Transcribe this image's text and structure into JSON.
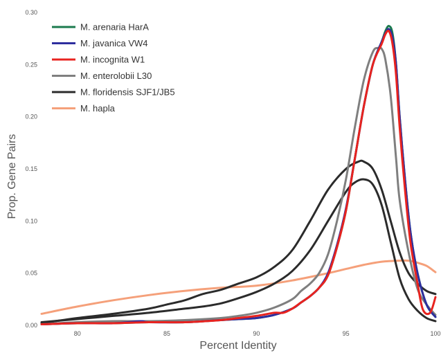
{
  "chart_data": {
    "type": "line",
    "title": "",
    "xlabel": "Percent Identity",
    "ylabel": "Prop. Gene Pairs",
    "xlim": [
      78,
      100
    ],
    "ylim": [
      0,
      0.3
    ],
    "x_ticks": [
      80,
      85,
      90,
      95,
      100
    ],
    "y_ticks": [
      0.0,
      0.05,
      0.1,
      0.15,
      0.2,
      0.25,
      0.3
    ],
    "x_tick_labels": [
      "80",
      "85",
      "90",
      "95",
      "100"
    ],
    "y_tick_labels": [
      "0.00",
      "0.05",
      "0.10",
      "0.15",
      "0.20",
      "0.25",
      "0.30"
    ],
    "grid": false,
    "legend_position": "top-left",
    "series": [
      {
        "name": "M. arenaria HarA",
        "color": "#1b7a4e",
        "points": [
          [
            78,
            0.001
          ],
          [
            80,
            0.002
          ],
          [
            82,
            0.002
          ],
          [
            84,
            0.003
          ],
          [
            86,
            0.003
          ],
          [
            88,
            0.005
          ],
          [
            89,
            0.006
          ],
          [
            90,
            0.007
          ],
          [
            91,
            0.01
          ],
          [
            92,
            0.016
          ],
          [
            92.5,
            0.022
          ],
          [
            93,
            0.028
          ],
          [
            93.5,
            0.036
          ],
          [
            94,
            0.048
          ],
          [
            94.5,
            0.075
          ],
          [
            95,
            0.11
          ],
          [
            95.5,
            0.16
          ],
          [
            96,
            0.21
          ],
          [
            96.5,
            0.25
          ],
          [
            97,
            0.272
          ],
          [
            97.2,
            0.282
          ],
          [
            97.4,
            0.287
          ],
          [
            97.6,
            0.28
          ],
          [
            97.8,
            0.25
          ],
          [
            98,
            0.2
          ],
          [
            98.3,
            0.14
          ],
          [
            98.6,
            0.09
          ],
          [
            99,
            0.05
          ],
          [
            99.5,
            0.02
          ],
          [
            100,
            0.008
          ]
        ]
      },
      {
        "name": "M. javanica VW4",
        "color": "#2e2e9e",
        "points": [
          [
            78,
            0.001
          ],
          [
            80,
            0.002
          ],
          [
            82,
            0.002
          ],
          [
            83.5,
            0.004
          ],
          [
            84,
            0.003
          ],
          [
            86,
            0.003
          ],
          [
            88,
            0.005
          ],
          [
            89,
            0.006
          ],
          [
            90,
            0.007
          ],
          [
            91,
            0.01
          ],
          [
            92,
            0.016
          ],
          [
            92.5,
            0.022
          ],
          [
            93,
            0.028
          ],
          [
            93.5,
            0.036
          ],
          [
            94,
            0.05
          ],
          [
            94.5,
            0.077
          ],
          [
            95,
            0.112
          ],
          [
            95.5,
            0.16
          ],
          [
            96,
            0.21
          ],
          [
            96.5,
            0.25
          ],
          [
            97,
            0.272
          ],
          [
            97.2,
            0.28
          ],
          [
            97.4,
            0.284
          ],
          [
            97.6,
            0.276
          ],
          [
            97.8,
            0.25
          ],
          [
            98,
            0.2
          ],
          [
            98.3,
            0.14
          ],
          [
            98.6,
            0.09
          ],
          [
            99,
            0.05
          ],
          [
            99.5,
            0.02
          ],
          [
            100,
            0.008
          ]
        ]
      },
      {
        "name": "M. incognita W1",
        "color": "#e8231f",
        "points": [
          [
            78,
            0.001
          ],
          [
            80,
            0.002
          ],
          [
            82,
            0.002
          ],
          [
            84,
            0.003
          ],
          [
            86,
            0.003
          ],
          [
            88,
            0.005
          ],
          [
            89,
            0.007
          ],
          [
            90,
            0.009
          ],
          [
            91,
            0.012
          ],
          [
            91.5,
            0.012
          ],
          [
            92,
            0.016
          ],
          [
            92.5,
            0.022
          ],
          [
            93,
            0.028
          ],
          [
            93.5,
            0.036
          ],
          [
            94,
            0.048
          ],
          [
            94.5,
            0.075
          ],
          [
            95,
            0.11
          ],
          [
            95.5,
            0.16
          ],
          [
            96,
            0.21
          ],
          [
            96.5,
            0.25
          ],
          [
            97,
            0.27
          ],
          [
            97.2,
            0.279
          ],
          [
            97.4,
            0.282
          ],
          [
            97.6,
            0.27
          ],
          [
            97.8,
            0.24
          ],
          [
            98,
            0.19
          ],
          [
            98.3,
            0.13
          ],
          [
            98.6,
            0.08
          ],
          [
            99,
            0.04
          ],
          [
            99.3,
            0.015
          ],
          [
            99.7,
            0.012
          ],
          [
            100,
            0.027
          ]
        ]
      },
      {
        "name": "M. enterolobii L30",
        "color": "#7f7f7f",
        "points": [
          [
            78,
            0.001
          ],
          [
            80,
            0.003
          ],
          [
            82,
            0.004
          ],
          [
            84,
            0.004
          ],
          [
            86,
            0.005
          ],
          [
            88,
            0.007
          ],
          [
            89,
            0.009
          ],
          [
            90,
            0.012
          ],
          [
            91,
            0.017
          ],
          [
            92,
            0.025
          ],
          [
            92.5,
            0.033
          ],
          [
            93,
            0.04
          ],
          [
            93.5,
            0.05
          ],
          [
            94,
            0.068
          ],
          [
            94.5,
            0.1
          ],
          [
            95,
            0.14
          ],
          [
            95.5,
            0.19
          ],
          [
            96,
            0.235
          ],
          [
            96.5,
            0.262
          ],
          [
            96.8,
            0.266
          ],
          [
            97,
            0.265
          ],
          [
            97.2,
            0.255
          ],
          [
            97.5,
            0.22
          ],
          [
            97.8,
            0.16
          ],
          [
            98,
            0.12
          ],
          [
            98.5,
            0.07
          ],
          [
            99,
            0.035
          ],
          [
            99.5,
            0.02
          ],
          [
            100,
            0.01
          ]
        ]
      },
      {
        "name": "M. floridensis SJF1/JB5",
        "color": "#2b2b2b",
        "points": [
          [
            78,
            0.003
          ],
          [
            80,
            0.006
          ],
          [
            82,
            0.009
          ],
          [
            84,
            0.012
          ],
          [
            86,
            0.016
          ],
          [
            87,
            0.018
          ],
          [
            88,
            0.021
          ],
          [
            89,
            0.026
          ],
          [
            90,
            0.032
          ],
          [
            91,
            0.04
          ],
          [
            92,
            0.052
          ],
          [
            93,
            0.072
          ],
          [
            94,
            0.1
          ],
          [
            95,
            0.128
          ],
          [
            95.5,
            0.137
          ],
          [
            96,
            0.14
          ],
          [
            96.5,
            0.135
          ],
          [
            97,
            0.115
          ],
          [
            97.5,
            0.08
          ],
          [
            98,
            0.045
          ],
          [
            98.5,
            0.025
          ],
          [
            99,
            0.014
          ],
          [
            99.5,
            0.007
          ],
          [
            100,
            0.004
          ]
        ]
      },
      {
        "name": "M. floridensis SJF1/JB5",
        "color": "#2b2b2b",
        "points": [
          [
            78,
            0.002
          ],
          [
            80,
            0.007
          ],
          [
            82,
            0.011
          ],
          [
            84,
            0.016
          ],
          [
            85,
            0.02
          ],
          [
            86,
            0.024
          ],
          [
            87,
            0.03
          ],
          [
            88,
            0.034
          ],
          [
            89,
            0.04
          ],
          [
            90,
            0.046
          ],
          [
            91,
            0.056
          ],
          [
            92,
            0.072
          ],
          [
            93,
            0.1
          ],
          [
            94,
            0.13
          ],
          [
            95,
            0.15
          ],
          [
            95.7,
            0.157
          ],
          [
            96,
            0.157
          ],
          [
            96.5,
            0.15
          ],
          [
            97,
            0.13
          ],
          [
            97.5,
            0.1
          ],
          [
            98,
            0.07
          ],
          [
            98.5,
            0.05
          ],
          [
            99,
            0.04
          ],
          [
            99.5,
            0.033
          ],
          [
            100,
            0.03
          ]
        ]
      },
      {
        "name": "M. hapla",
        "color": "#f5a07a",
        "points": [
          [
            78,
            0.011
          ],
          [
            80,
            0.018
          ],
          [
            82,
            0.024
          ],
          [
            84,
            0.029
          ],
          [
            86,
            0.033
          ],
          [
            88,
            0.036
          ],
          [
            90,
            0.038
          ],
          [
            92,
            0.043
          ],
          [
            94,
            0.05
          ],
          [
            95,
            0.054
          ],
          [
            96,
            0.058
          ],
          [
            97,
            0.061
          ],
          [
            98,
            0.062
          ],
          [
            98.5,
            0.062
          ],
          [
            99,
            0.06
          ],
          [
            99.5,
            0.057
          ],
          [
            100,
            0.051
          ]
        ]
      }
    ],
    "legend": [
      {
        "label": "M. arenaria HarA",
        "color": "#1b7a4e"
      },
      {
        "label": "M. javanica VW4",
        "color": "#2e2e9e"
      },
      {
        "label": "M. incognita W1",
        "color": "#e8231f"
      },
      {
        "label": "M. enterolobii L30",
        "color": "#7f7f7f"
      },
      {
        "label": "M. floridensis SJF1/JB5",
        "color": "#2b2b2b"
      },
      {
        "label": "M. hapla",
        "color": "#f5a07a"
      }
    ]
  }
}
